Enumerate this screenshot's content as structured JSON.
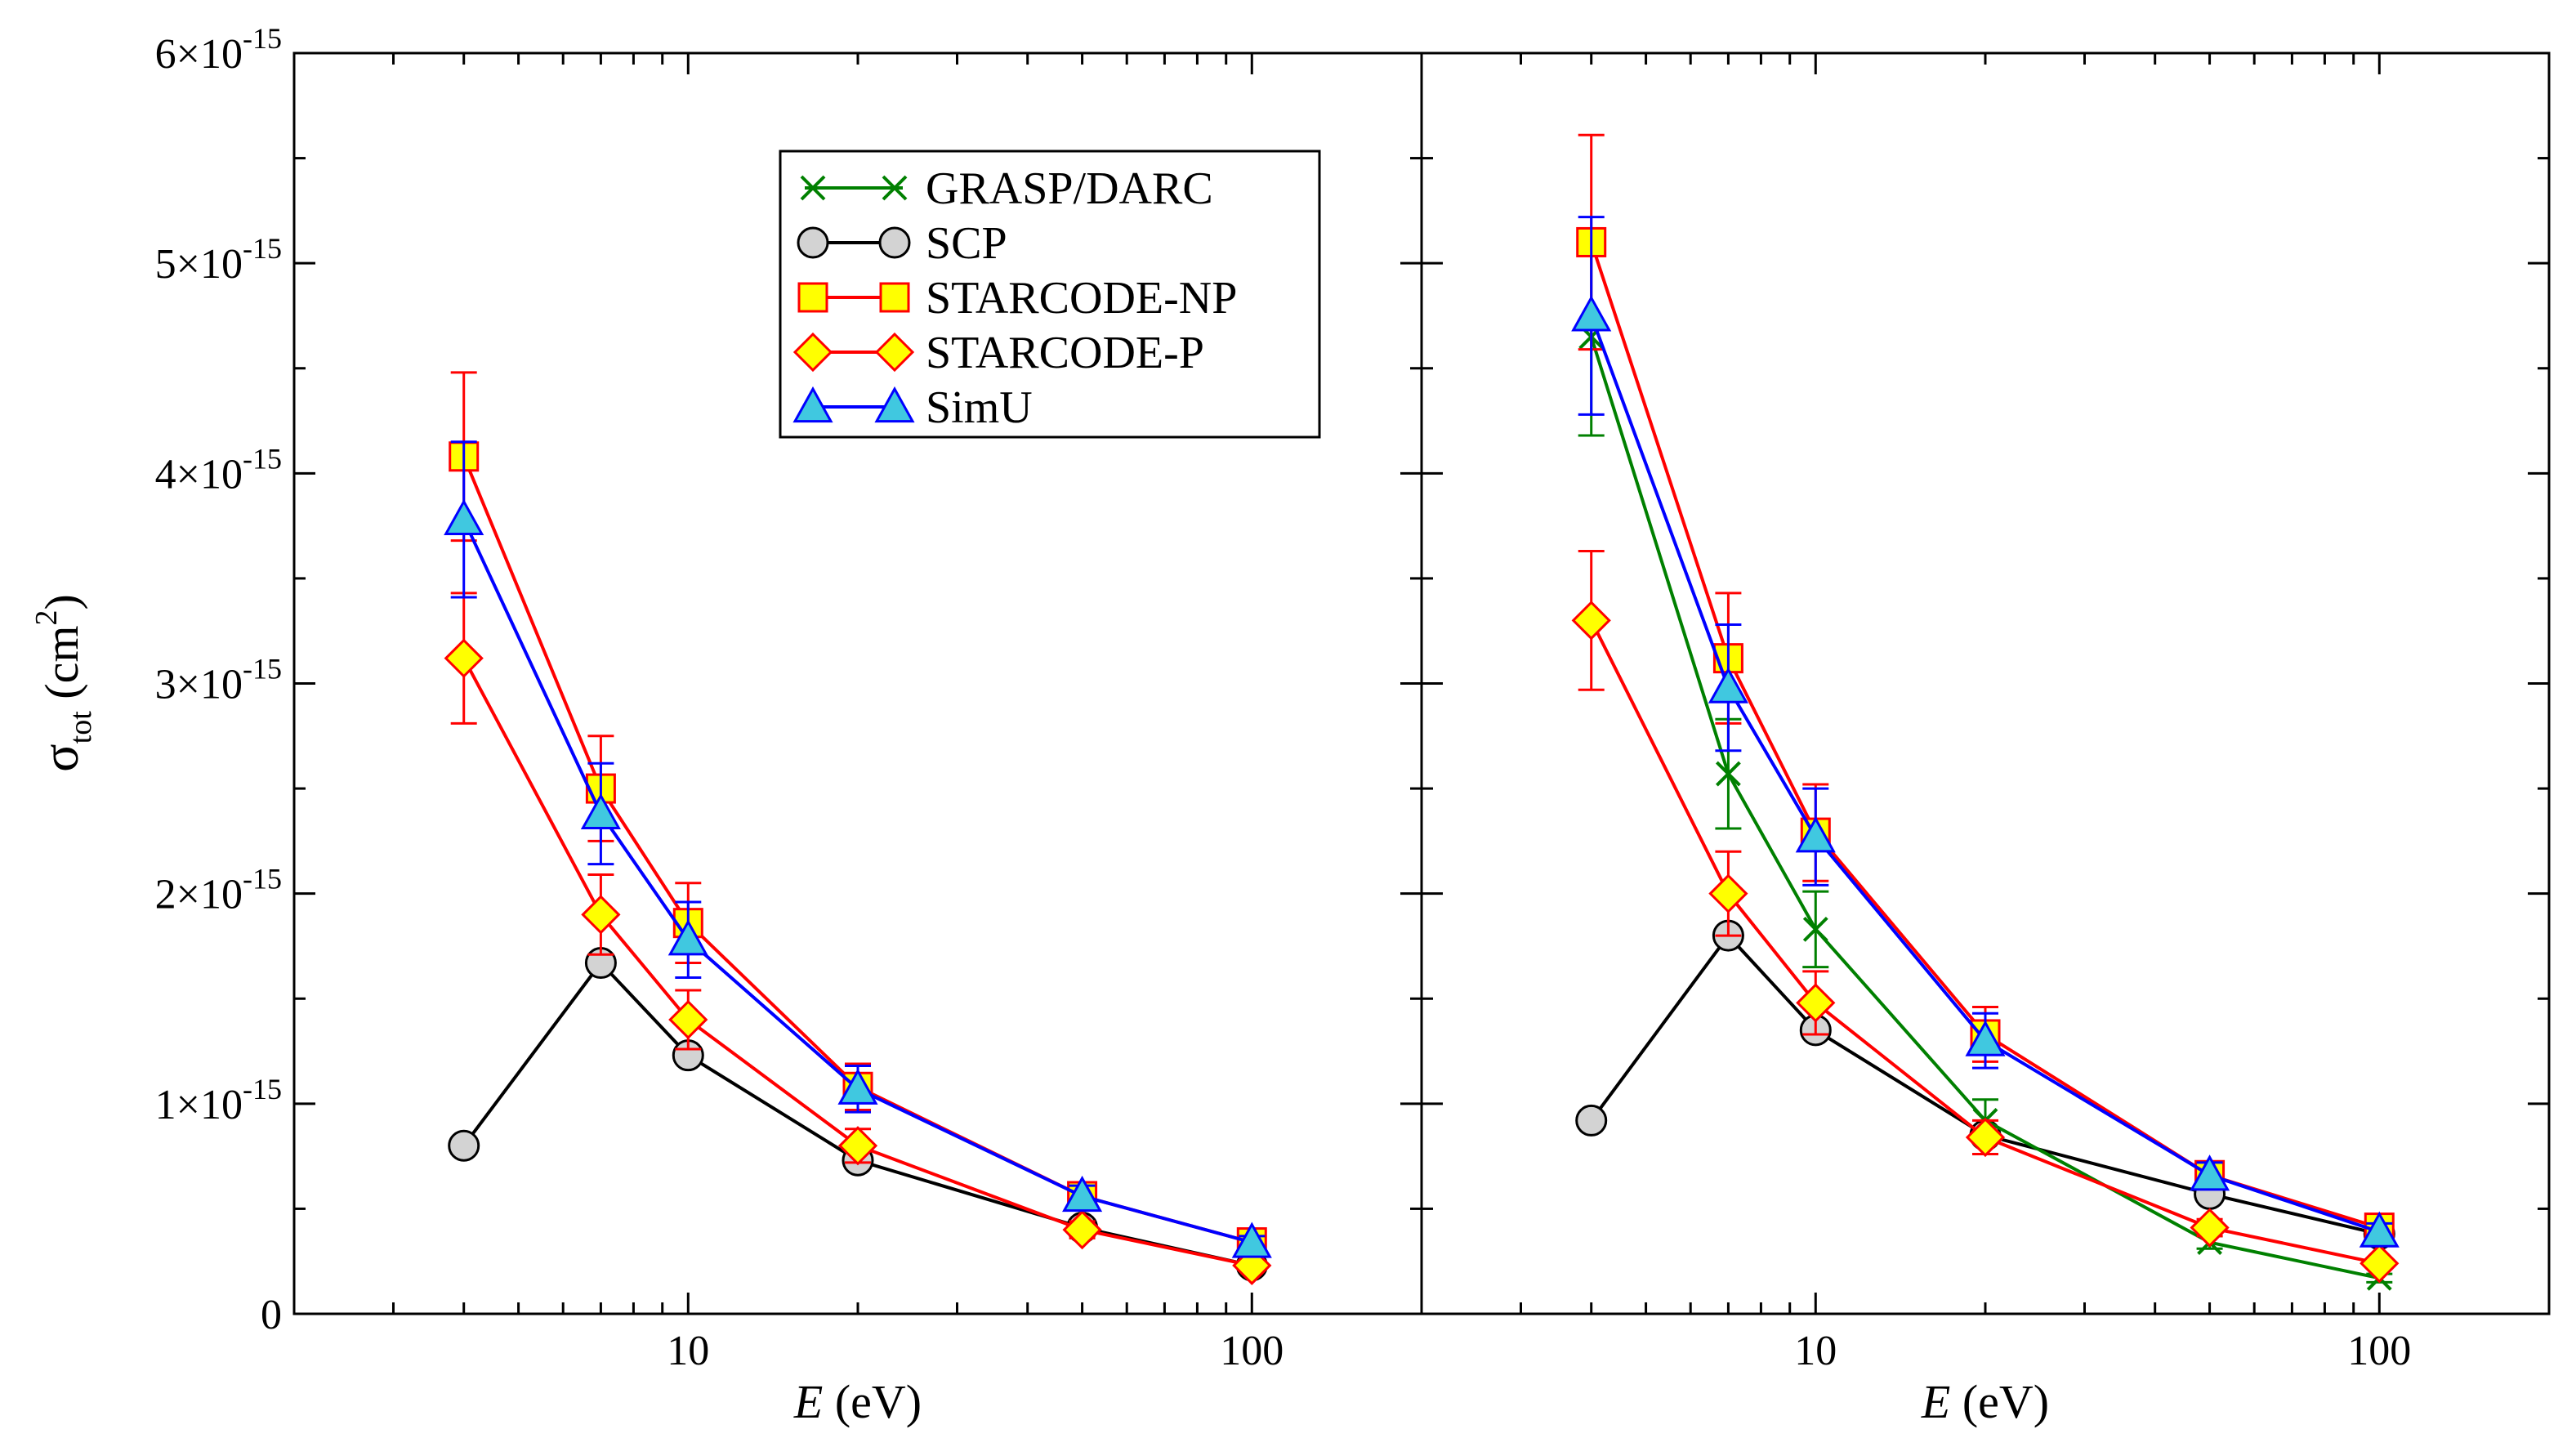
{
  "chart_data": {
    "type": "line",
    "x_scale": "log",
    "y_scale": "linear",
    "xlim": [
      2,
      200
    ],
    "ylim": [
      0,
      6e-15
    ],
    "ylabel": {
      "symbol": "σ",
      "sub": "tot",
      "unit_open": " (cm",
      "unit_sup": "2",
      "unit_close": ")"
    },
    "y_ticks": [
      {
        "value": 0,
        "mantissa": "0",
        "times": "",
        "exponent": ""
      },
      {
        "value": 1e-15,
        "mantissa": "1",
        "times": "×10",
        "exponent": "-15"
      },
      {
        "value": 2e-15,
        "mantissa": "2",
        "times": "×10",
        "exponent": "-15"
      },
      {
        "value": 3e-15,
        "mantissa": "3",
        "times": "×10",
        "exponent": "-15"
      },
      {
        "value": 4e-15,
        "mantissa": "4",
        "times": "×10",
        "exponent": "-15"
      },
      {
        "value": 5e-15,
        "mantissa": "5",
        "times": "×10",
        "exponent": "-15"
      },
      {
        "value": 6e-15,
        "mantissa": "6",
        "times": "×10",
        "exponent": "-15"
      }
    ],
    "x_ticks": [
      {
        "value": 10,
        "label": "10"
      },
      {
        "value": 100,
        "label": "100"
      }
    ],
    "legend": {
      "position": "top-center-left-panel",
      "entries": [
        "GRASP/DARC",
        "SCP",
        "STARCODE-NP",
        "STARCODE-P",
        "SimU"
      ]
    },
    "panels": [
      {
        "xlabel": {
          "italic": "E",
          "rest": " (eV)"
        },
        "series": [
          {
            "name": "SCP",
            "color": "#000000",
            "marker": "circle",
            "marker_fill": "#d3d3d3",
            "x": [
              4,
              7,
              10,
              20,
              50,
              100
            ],
            "y": [
              8e-16,
              1.67e-15,
              1.23e-15,
              7.3e-16,
              4.1e-16,
              2.3e-16
            ],
            "err": [
              0,
              0,
              0,
              0,
              0,
              0
            ]
          },
          {
            "name": "STARCODE-P",
            "color": "#ff0000",
            "marker": "diamond",
            "marker_fill": "#ffff00",
            "x": [
              4,
              7,
              10,
              20,
              50,
              100
            ],
            "y": [
              3.12e-15,
              1.9e-15,
              1.4e-15,
              8e-16,
              4e-16,
              2.3e-16
            ],
            "err": [
              3.1e-16,
              1.9e-16,
              1.4e-16,
              8e-17,
              4e-17,
              2.3e-17
            ]
          },
          {
            "name": "STARCODE-NP",
            "color": "#ff0000",
            "marker": "square",
            "marker_fill": "#ffff00",
            "x": [
              4,
              7,
              10,
              20,
              50,
              100
            ],
            "y": [
              4.08e-15,
              2.5e-15,
              1.86e-15,
              1.08e-15,
              5.6e-16,
              3.4e-16
            ],
            "err": [
              4e-16,
              2.5e-16,
              1.9e-16,
              1.1e-16,
              5e-17,
              3e-17
            ]
          },
          {
            "name": "SimU",
            "color": "#0000ff",
            "marker": "triangle",
            "marker_fill": "#40c8e0",
            "x": [
              4,
              7,
              10,
              20,
              50,
              100
            ],
            "y": [
              3.78e-15,
              2.38e-15,
              1.78e-15,
              1.07e-15,
              5.6e-16,
              3.4e-16
            ],
            "err": [
              3.7e-16,
              2.4e-16,
              1.8e-16,
              1.1e-16,
              5e-17,
              3e-17
            ]
          }
        ]
      },
      {
        "xlabel": {
          "italic": "E",
          "rest": " (eV)"
        },
        "series": [
          {
            "name": "SCP",
            "color": "#000000",
            "marker": "circle",
            "marker_fill": "#d3d3d3",
            "x": [
              4,
              7,
              10,
              20,
              50,
              100
            ],
            "y": [
              9.2e-16,
              1.8e-15,
              1.35e-15,
              8.5e-16,
              5.7e-16,
              3.8e-16
            ],
            "err": [
              0,
              0,
              0,
              0,
              0,
              0
            ]
          },
          {
            "name": "GRASP/DARC",
            "color": "#008000",
            "marker": "x",
            "marker_fill": "none",
            "x": [
              4,
              7,
              10,
              20,
              50,
              100
            ],
            "y": [
              4.65e-15,
              2.57e-15,
              1.83e-15,
              9.2e-16,
              3.4e-16,
              1.7e-16
            ],
            "err": [
              4.7e-16,
              2.6e-16,
              1.8e-16,
              1e-16,
              3e-17,
              2e-17
            ]
          },
          {
            "name": "STARCODE-P",
            "color": "#ff0000",
            "marker": "diamond",
            "marker_fill": "#ffff00",
            "x": [
              4,
              7,
              10,
              20,
              50,
              100
            ],
            "y": [
              3.3e-15,
              2e-15,
              1.48e-15,
              8.4e-16,
              4.1e-16,
              2.4e-16
            ],
            "err": [
              3.3e-16,
              2e-16,
              1.5e-16,
              8e-17,
              4e-17,
              2e-17
            ]
          },
          {
            "name": "STARCODE-NP",
            "color": "#ff0000",
            "marker": "square",
            "marker_fill": "#ffff00",
            "x": [
              4,
              7,
              10,
              20,
              50,
              100
            ],
            "y": [
              5.1e-15,
              3.12e-15,
              2.29e-15,
              1.33e-15,
              6.6e-16,
              4.1e-16
            ],
            "err": [
              5.1e-16,
              3.1e-16,
              2.3e-16,
              1.3e-16,
              6e-17,
              4e-17
            ]
          },
          {
            "name": "SimU",
            "color": "#0000ff",
            "marker": "triangle",
            "marker_fill": "#40c8e0",
            "x": [
              4,
              7,
              10,
              20,
              50,
              100
            ],
            "y": [
              4.75e-15,
              2.98e-15,
              2.27e-15,
              1.3e-15,
              6.6e-16,
              3.9e-16
            ],
            "err": [
              4.7e-16,
              3e-16,
              2.3e-16,
              1.3e-16,
              6e-17,
              4e-17
            ]
          }
        ]
      }
    ]
  }
}
